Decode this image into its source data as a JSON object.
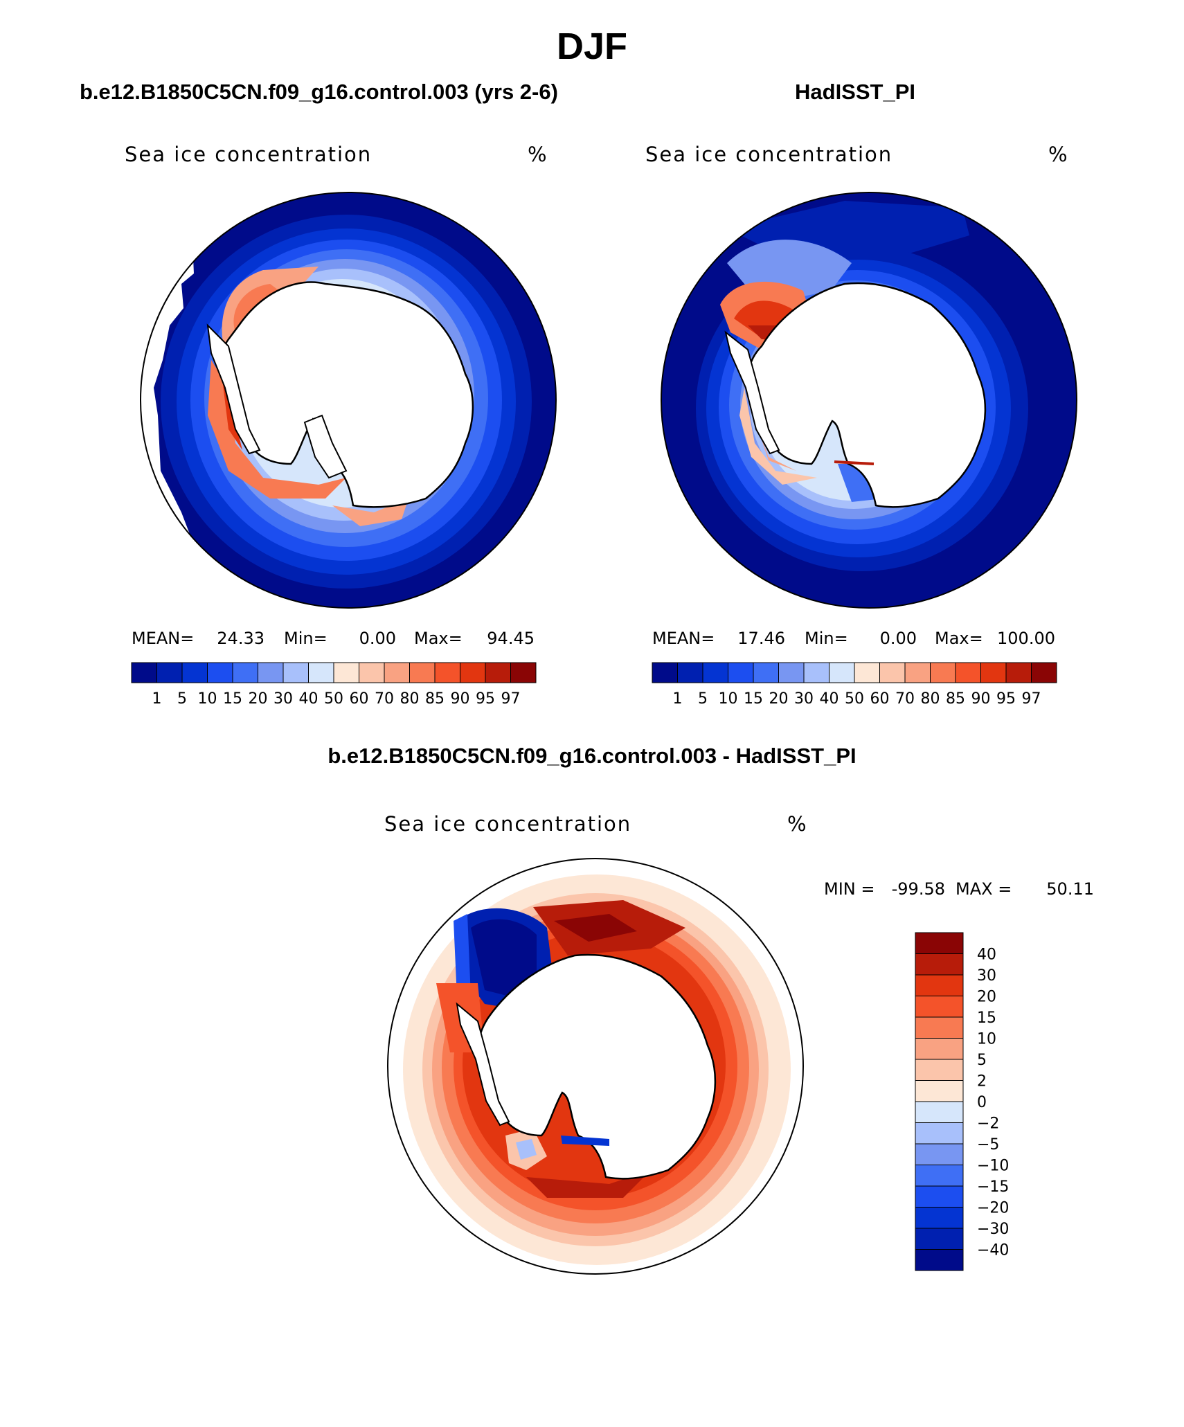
{
  "figure": {
    "title": "DJF",
    "variable": "Sea ice concentration",
    "units": "%"
  },
  "colors": {
    "blues": [
      "#000b8a",
      "#0020b0",
      "#0434d2",
      "#1c4ef0",
      "#3f6ff5",
      "#7896f2",
      "#a8c0fb",
      "#d6e6fb"
    ],
    "reds": [
      "#fde7d6",
      "#fbc5ab",
      "#f9a282",
      "#f87a52",
      "#f4532a",
      "#e23610",
      "#b71c0a",
      "#8a0505"
    ],
    "land": "#ffffff",
    "coast": "#000000"
  },
  "chart_data": [
    {
      "type": "heatmap",
      "title": "b.e12.B1850C5CN.f09_g16.control.003 (yrs 2-6)",
      "projection": "south polar stereographic",
      "stats": {
        "mean_label": "MEAN=",
        "mean": "24.33",
        "min_label": "Min=",
        "min": "0.00",
        "max_label": "Max=",
        "max": "94.45"
      },
      "levels": [
        "1",
        "5",
        "10",
        "15",
        "20",
        "30",
        "40",
        "50",
        "60",
        "70",
        "80",
        "85",
        "90",
        "95",
        "97"
      ],
      "legend_position": "bottom"
    },
    {
      "type": "heatmap",
      "title": "HadISST_PI",
      "projection": "south polar stereographic",
      "stats": {
        "mean_label": "MEAN=",
        "mean": "17.46",
        "min_label": "Min=",
        "min": "0.00",
        "max_label": "Max=",
        "max": "100.00"
      },
      "levels": [
        "1",
        "5",
        "10",
        "15",
        "20",
        "30",
        "40",
        "50",
        "60",
        "70",
        "80",
        "85",
        "90",
        "95",
        "97"
      ],
      "legend_position": "bottom"
    },
    {
      "type": "heatmap",
      "title": "b.e12.B1850C5CN.f09_g16.control.003 - HadISST_PI",
      "projection": "south polar stereographic",
      "stats": {
        "min_label": "MIN =",
        "min": "-99.58",
        "max_label": "MAX =",
        "max": "50.11"
      },
      "levels": [
        "40",
        "30",
        "20",
        "15",
        "10",
        "5",
        "2",
        "0",
        "-2",
        "-5",
        "-10",
        "-15",
        "-20",
        "-30",
        "-40"
      ],
      "legend_position": "right"
    }
  ]
}
